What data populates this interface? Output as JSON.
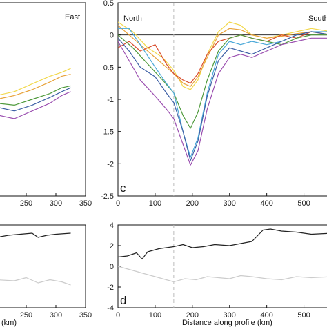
{
  "chart_data": [
    {
      "panel": "top-left",
      "type": "line",
      "xlim": [
        200,
        350
      ],
      "xticks": [
        250,
        300,
        350
      ],
      "annotations": [
        "East"
      ],
      "series": [
        {
          "color": "#f2d84b",
          "x": [
            200,
            230,
            260,
            290,
            310,
            325
          ],
          "y": [
            0.02,
            0.04,
            0.08,
            0.12,
            0.14,
            0.16
          ]
        },
        {
          "color": "#e8a33a",
          "x": [
            200,
            230,
            260,
            290,
            310,
            325
          ],
          "y": [
            0.0,
            0.02,
            0.05,
            0.09,
            0.12,
            0.13
          ]
        },
        {
          "color": "#4f9a3c",
          "x": [
            200,
            230,
            260,
            290,
            310,
            325
          ],
          "y": [
            -0.02,
            -0.03,
            0.0,
            0.03,
            0.06,
            0.07
          ]
        },
        {
          "color": "#3c5fa5",
          "x": [
            200,
            230,
            260,
            290,
            310,
            325
          ],
          "y": [
            -0.04,
            -0.06,
            -0.03,
            0.01,
            0.04,
            0.06
          ]
        },
        {
          "color": "#9b4fb0",
          "x": [
            200,
            230,
            260,
            290,
            310,
            325
          ],
          "y": [
            -0.08,
            -0.1,
            -0.06,
            -0.02,
            0.02,
            0.04
          ]
        }
      ]
    },
    {
      "panel": "c",
      "type": "line",
      "label": "c",
      "xlim": [
        0,
        575
      ],
      "ylim": [
        -2.5,
        0.5
      ],
      "xticks": [
        0,
        100,
        200,
        300,
        400,
        500
      ],
      "yticks": [
        0.5,
        0,
        -0.5,
        -1,
        -1.5,
        -2,
        -2.5
      ],
      "annotations": [
        "North",
        "South"
      ],
      "dashed_x": 150,
      "series": [
        {
          "color": "#f2d84b",
          "x": [
            0,
            40,
            80,
            120,
            150,
            175,
            195,
            215,
            240,
            270,
            300,
            330,
            360,
            400,
            440,
            480,
            520,
            575
          ],
          "y": [
            0.2,
            0.05,
            -0.2,
            -0.35,
            -0.55,
            -0.8,
            -0.85,
            -0.7,
            -0.3,
            0.05,
            0.2,
            0.15,
            0.0,
            -0.05,
            0.0,
            0.05,
            0.1,
            0.05
          ]
        },
        {
          "color": "#e8a33a",
          "x": [
            0,
            40,
            80,
            120,
            150,
            175,
            195,
            215,
            240,
            270,
            300,
            330,
            360,
            400,
            440,
            480,
            520,
            575
          ],
          "y": [
            0.15,
            -0.05,
            -0.25,
            -0.45,
            -0.6,
            -0.75,
            -0.8,
            -0.65,
            -0.35,
            0.0,
            0.1,
            0.08,
            0.0,
            -0.05,
            -0.02,
            0.02,
            0.05,
            0.0
          ]
        },
        {
          "color": "#d94c2e",
          "x": [
            0,
            30,
            60,
            100,
            130,
            150,
            175,
            195,
            215,
            240,
            270,
            300,
            330,
            360,
            400,
            440,
            480,
            520,
            575
          ],
          "y": [
            -0.2,
            -0.1,
            -0.25,
            -0.15,
            -0.45,
            -0.6,
            -0.7,
            -0.75,
            -0.6,
            -0.3,
            -0.1,
            -0.05,
            0.0,
            -0.05,
            -0.1,
            0.0,
            -0.05,
            0.05,
            0.0
          ]
        },
        {
          "color": "#4f9a3c",
          "x": [
            0,
            40,
            80,
            120,
            150,
            175,
            195,
            215,
            240,
            270,
            300,
            330,
            360,
            400,
            440,
            480,
            520,
            575
          ],
          "y": [
            0.0,
            -0.2,
            -0.45,
            -0.7,
            -0.9,
            -1.25,
            -1.45,
            -1.2,
            -0.7,
            -0.25,
            -0.05,
            0.0,
            -0.05,
            -0.1,
            -0.15,
            -0.05,
            0.0,
            0.0
          ]
        },
        {
          "color": "#4aa8d8",
          "x": [
            0,
            30,
            60,
            100,
            130,
            150,
            175,
            195,
            215,
            240,
            270,
            300,
            330,
            360,
            400,
            440,
            480,
            520,
            575
          ],
          "y": [
            0.1,
            0.1,
            -0.15,
            -0.5,
            -0.75,
            -0.9,
            -1.5,
            -1.9,
            -1.6,
            -0.9,
            -0.3,
            -0.1,
            -0.15,
            -0.1,
            -0.15,
            -0.1,
            0.0,
            0.05,
            0.05
          ]
        },
        {
          "color": "#3c5fa5",
          "x": [
            0,
            30,
            60,
            100,
            130,
            150,
            175,
            195,
            215,
            240,
            270,
            300,
            330,
            360,
            400,
            440,
            480,
            520,
            575
          ],
          "y": [
            -0.05,
            -0.25,
            -0.5,
            -0.65,
            -0.9,
            -1.05,
            -1.5,
            -1.95,
            -1.65,
            -0.95,
            -0.4,
            -0.2,
            -0.25,
            -0.3,
            -0.2,
            -0.1,
            0.0,
            0.05,
            0.0
          ]
        },
        {
          "color": "#9b4fb0",
          "x": [
            0,
            30,
            60,
            100,
            130,
            150,
            175,
            195,
            215,
            240,
            270,
            300,
            330,
            360,
            400,
            440,
            480,
            520,
            575
          ],
          "y": [
            -0.1,
            -0.4,
            -0.7,
            -0.95,
            -1.15,
            -1.3,
            -1.7,
            -2.02,
            -1.8,
            -1.15,
            -0.6,
            -0.35,
            -0.3,
            -0.35,
            -0.25,
            -0.15,
            -0.1,
            -0.05,
            -0.05
          ]
        }
      ]
    },
    {
      "panel": "bottom-left",
      "type": "line",
      "xlim": [
        200,
        350
      ],
      "xticks": [
        250,
        300,
        350
      ],
      "xlabel": "(km)",
      "series": [
        {
          "color": "#222222",
          "x": [
            200,
            220,
            240,
            260,
            270,
            285,
            300,
            325
          ],
          "y": [
            2.8,
            3.0,
            3.1,
            3.2,
            2.8,
            3.0,
            3.1,
            3.2
          ]
        },
        {
          "color": "#cccccc",
          "x": [
            200,
            230,
            250,
            270,
            290,
            310,
            325
          ],
          "y": [
            -1.3,
            -1.4,
            -1.1,
            -1.6,
            -1.3,
            -1.5,
            -1.8
          ]
        }
      ]
    },
    {
      "panel": "d",
      "type": "line",
      "label": "d",
      "xlim": [
        0,
        575
      ],
      "ylim": [
        -4,
        4
      ],
      "xticks": [
        0,
        100,
        200,
        300,
        400,
        500
      ],
      "yticks": [
        4,
        2,
        0,
        -2,
        -4
      ],
      "xlabel": "Distance along profile (km)",
      "dashed_x": 150,
      "series": [
        {
          "color": "#222222",
          "x": [
            0,
            25,
            50,
            65,
            80,
            110,
            150,
            175,
            200,
            230,
            260,
            300,
            330,
            360,
            390,
            410,
            440,
            480,
            520,
            575
          ],
          "y": [
            0.9,
            1.0,
            1.3,
            0.7,
            1.4,
            1.7,
            1.9,
            2.1,
            1.8,
            1.9,
            2.1,
            2.0,
            2.2,
            2.4,
            3.5,
            3.6,
            3.4,
            3.3,
            3.1,
            3.2
          ]
        },
        {
          "color": "#cccccc",
          "x": [
            0,
            30,
            60,
            90,
            120,
            150,
            180,
            210,
            240,
            270,
            300,
            330,
            360,
            400,
            440,
            480,
            520,
            575
          ],
          "y": [
            0.0,
            -0.3,
            -0.6,
            -0.9,
            -1.2,
            -1.5,
            -1.2,
            -1.3,
            -1.0,
            -1.1,
            -1.2,
            -0.9,
            -1.0,
            -1.2,
            -1.3,
            -1.0,
            -1.1,
            -1.0
          ]
        }
      ]
    }
  ]
}
